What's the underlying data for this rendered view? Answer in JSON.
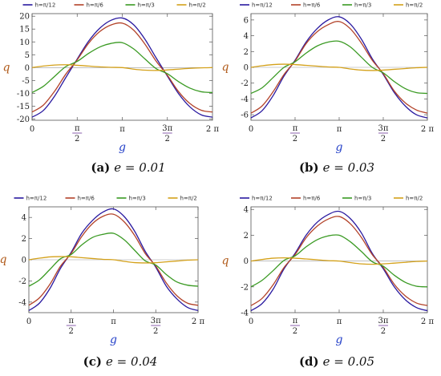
{
  "colors": {
    "series": [
      "#2a1aa0",
      "#b3432a",
      "#3a9a23",
      "#d4a11a"
    ],
    "axis": "#555555",
    "axis_label_x": "#2440c8",
    "axis_label_y": "#b05a1a"
  },
  "chart_data": [
    {
      "type": "line",
      "caption_tag": "(a)",
      "caption_eq": "e = 0.01",
      "xlabel": "g",
      "ylabel": "q",
      "xlim": [
        0,
        6.2832
      ],
      "ylim": [
        -20.5,
        21
      ],
      "xticks": [
        "0",
        "π/2",
        "π",
        "3π/2",
        "2 π"
      ],
      "yticks": [
        -20,
        -15,
        -10,
        -5,
        0,
        5,
        10,
        15,
        20
      ],
      "legend": [
        "h=π/12",
        "h=π/6",
        "h=π/3",
        "h=π/2"
      ],
      "legend_placement": "top",
      "grid": false,
      "x": [
        0,
        0.3927,
        0.7854,
        1.1781,
        1.5708,
        1.9635,
        2.3562,
        2.7489,
        3.1416,
        3.5343,
        3.927,
        4.3197,
        4.7124,
        5.1051,
        5.4978,
        5.8905,
        6.2832
      ],
      "series": [
        {
          "name": "h=π/12",
          "values": [
            -19.3,
            -16.7,
            -11.1,
            -3.8,
            3.3,
            10.2,
            15.3,
            18.4,
            19.3,
            16.7,
            11.1,
            3.8,
            -3.3,
            -10.2,
            -15.3,
            -18.4,
            -19.3
          ]
        },
        {
          "name": "h=π/6",
          "values": [
            -17.3,
            -14.6,
            -9.2,
            -2.5,
            3.0,
            9.4,
            14.0,
            16.6,
            17.3,
            14.6,
            9.2,
            2.5,
            -3.0,
            -9.4,
            -14.0,
            -16.6,
            -17.3
          ]
        },
        {
          "name": "h=π/3",
          "values": [
            -9.7,
            -7.3,
            -3.4,
            0.4,
            2.4,
            5.5,
            8.0,
            9.4,
            9.7,
            7.3,
            3.4,
            -0.4,
            -2.4,
            -5.5,
            -8.0,
            -9.4,
            -9.7
          ]
        },
        {
          "name": "h=π/2",
          "values": [
            0,
            0.6,
            1.0,
            1.1,
            0.9,
            0.6,
            0.3,
            0.1,
            0,
            -0.6,
            -1.0,
            -1.1,
            -0.9,
            -0.6,
            -0.3,
            -0.1,
            0
          ]
        }
      ]
    },
    {
      "type": "line",
      "caption_tag": "(b)",
      "caption_eq": "e = 0.03",
      "xlabel": "g",
      "ylabel": "q",
      "xlim": [
        0,
        6.2832
      ],
      "ylim": [
        -6.7,
        6.8
      ],
      "xticks": [
        "0",
        "π/2",
        "π",
        "3π/2",
        "2 π"
      ],
      "yticks": [
        -6,
        -4,
        -2,
        0,
        2,
        4,
        6
      ],
      "legend": [
        "h=π/12",
        "h=π/6",
        "h=π/3",
        "h=π/2"
      ],
      "legend_placement": "top",
      "grid": false,
      "x": [
        0,
        0.3927,
        0.7854,
        1.1781,
        1.5708,
        1.9635,
        2.3562,
        2.7489,
        3.1416,
        3.5343,
        3.927,
        4.3197,
        4.7124,
        5.1051,
        5.4978,
        5.8905,
        6.2832
      ],
      "series": [
        {
          "name": "h=π/12",
          "values": [
            -6.4,
            -5.5,
            -3.6,
            -1.1,
            0.9,
            3.2,
            4.9,
            6.0,
            6.4,
            5.5,
            3.6,
            1.1,
            -0.9,
            -3.2,
            -4.9,
            -6.0,
            -6.4
          ]
        },
        {
          "name": "h=π/6",
          "values": [
            -5.8,
            -4.9,
            -3.1,
            -0.9,
            0.8,
            3.0,
            4.5,
            5.4,
            5.8,
            4.9,
            3.1,
            0.9,
            -0.8,
            -3.0,
            -4.5,
            -5.4,
            -5.8
          ]
        },
        {
          "name": "h=π/3",
          "values": [
            -3.3,
            -2.6,
            -1.3,
            0.0,
            0.7,
            1.8,
            2.7,
            3.2,
            3.3,
            2.6,
            1.3,
            0.0,
            -0.7,
            -1.8,
            -2.7,
            -3.2,
            -3.3
          ]
        },
        {
          "name": "h=π/2",
          "values": [
            0,
            0.2,
            0.35,
            0.4,
            0.35,
            0.25,
            0.15,
            0.05,
            0,
            -0.2,
            -0.35,
            -0.4,
            -0.35,
            -0.25,
            -0.15,
            -0.05,
            0
          ]
        }
      ]
    },
    {
      "type": "line",
      "caption_tag": "(c)",
      "caption_eq": "e = 0.04",
      "xlabel": "g",
      "ylabel": "q",
      "xlim": [
        0,
        6.2832
      ],
      "ylim": [
        -5.0,
        5.0
      ],
      "xticks": [
        "0",
        "π/2",
        "π",
        "3π/2",
        "2 π"
      ],
      "yticks": [
        -4,
        -2,
        0,
        2,
        4
      ],
      "legend": [
        "h=π/12",
        "h=π/6",
        "h=π/3",
        "h=π/2"
      ],
      "legend_placement": "top",
      "grid": false,
      "x": [
        0,
        0.3927,
        0.7854,
        1.1781,
        1.5708,
        1.9635,
        2.3562,
        2.7489,
        3.1416,
        3.5343,
        3.927,
        4.3197,
        4.7124,
        5.1051,
        5.4978,
        5.8905,
        6.2832
      ],
      "series": [
        {
          "name": "h=π/12",
          "values": [
            -4.8,
            -4.1,
            -2.7,
            -0.8,
            0.7,
            2.5,
            3.7,
            4.5,
            4.8,
            4.1,
            2.7,
            0.8,
            -0.7,
            -2.5,
            -3.7,
            -4.5,
            -4.8
          ]
        },
        {
          "name": "h=π/6",
          "values": [
            -4.3,
            -3.6,
            -2.3,
            -0.6,
            0.6,
            2.2,
            3.4,
            4.1,
            4.3,
            3.6,
            2.3,
            0.6,
            -0.6,
            -2.2,
            -3.4,
            -4.1,
            -4.3
          ]
        },
        {
          "name": "h=π/3",
          "values": [
            -2.5,
            -1.9,
            -0.9,
            0.1,
            0.5,
            1.4,
            2.1,
            2.4,
            2.5,
            1.9,
            0.9,
            -0.1,
            -0.5,
            -1.4,
            -2.1,
            -2.4,
            -2.5
          ]
        },
        {
          "name": "h=π/2",
          "values": [
            0,
            0.15,
            0.27,
            0.3,
            0.28,
            0.2,
            0.12,
            0.04,
            0,
            -0.15,
            -0.27,
            -0.3,
            -0.28,
            -0.2,
            -0.12,
            -0.04,
            0
          ]
        }
      ]
    },
    {
      "type": "line",
      "caption_tag": "(d)",
      "caption_eq": "e = 0.05",
      "xlabel": "g",
      "ylabel": "q",
      "xlim": [
        0,
        6.2832
      ],
      "ylim": [
        -4.0,
        4.2
      ],
      "xticks": [
        "0",
        "π/2",
        "π",
        "3π/2",
        "2 π"
      ],
      "yticks": [
        -4,
        -2,
        0,
        2,
        4
      ],
      "legend": [
        "h=π/12",
        "h=π/6",
        "h=π/3",
        "h=π/2"
      ],
      "legend_placement": "top",
      "grid": false,
      "x": [
        0,
        0.3927,
        0.7854,
        1.1781,
        1.5708,
        1.9635,
        2.3562,
        2.7489,
        3.1416,
        3.5343,
        3.927,
        4.3197,
        4.7124,
        5.1051,
        5.4978,
        5.8905,
        6.2832
      ],
      "series": [
        {
          "name": "h=π/12",
          "values": [
            -3.85,
            -3.3,
            -2.2,
            -0.6,
            0.6,
            2.0,
            3.0,
            3.6,
            3.85,
            3.3,
            2.2,
            0.6,
            -0.6,
            -2.0,
            -3.0,
            -3.6,
            -3.85
          ]
        },
        {
          "name": "h=π/6",
          "values": [
            -3.45,
            -2.9,
            -1.85,
            -0.5,
            0.5,
            1.8,
            2.7,
            3.25,
            3.45,
            2.9,
            1.85,
            0.5,
            -0.5,
            -1.8,
            -2.7,
            -3.25,
            -3.45
          ]
        },
        {
          "name": "h=π/3",
          "values": [
            -2.0,
            -1.5,
            -0.75,
            0.05,
            0.4,
            1.1,
            1.65,
            1.95,
            2.0,
            1.5,
            0.75,
            -0.05,
            -0.4,
            -1.1,
            -1.65,
            -1.95,
            -2.0
          ]
        },
        {
          "name": "h=π/2",
          "values": [
            0,
            0.12,
            0.22,
            0.25,
            0.22,
            0.16,
            0.1,
            0.03,
            0,
            -0.12,
            -0.22,
            -0.25,
            -0.22,
            -0.16,
            -0.1,
            -0.03,
            0
          ]
        }
      ]
    }
  ]
}
